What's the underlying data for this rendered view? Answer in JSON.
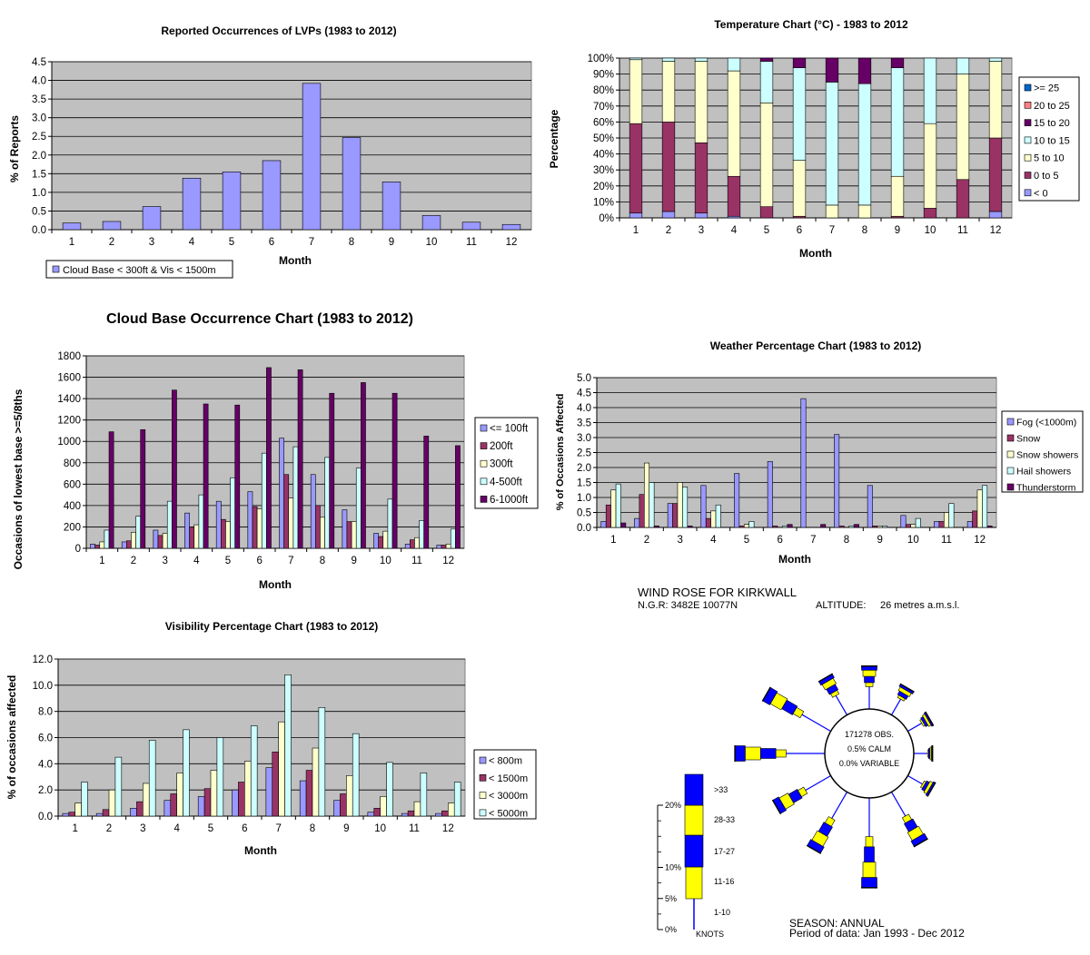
{
  "chart_data": [
    {
      "id": "lvp",
      "type": "bar",
      "title": "Reported Occurrences of LVPs (1983 to 2012)",
      "xlabel": "Month",
      "ylabel": "% of Reports",
      "ylim": [
        0,
        4.5
      ],
      "yticks": [
        "0.0",
        "0.5",
        "1.0",
        "1.5",
        "2.0",
        "2.5",
        "3.0",
        "3.5",
        "4.0",
        "4.5"
      ],
      "categories": [
        "1",
        "2",
        "3",
        "4",
        "5",
        "6",
        "7",
        "8",
        "9",
        "10",
        "11",
        "12"
      ],
      "grid": true,
      "legend_position": "bottom",
      "series": [
        {
          "name": "Cloud Base < 300ft & Vis < 1500m",
          "color": "#9999ff",
          "values": [
            0.18,
            0.22,
            0.62,
            1.38,
            1.55,
            1.85,
            3.92,
            2.47,
            1.28,
            0.38,
            0.2,
            0.14
          ]
        }
      ]
    },
    {
      "id": "temp",
      "type": "bar",
      "stacked": true,
      "title": "Temperature Chart (°C) - 1983 to 2012",
      "xlabel": "Month",
      "ylabel": "Percentage",
      "ylim": [
        0,
        100
      ],
      "yticks": [
        "0%",
        "10%",
        "20%",
        "30%",
        "40%",
        "50%",
        "60%",
        "70%",
        "80%",
        "90%",
        "100%"
      ],
      "categories": [
        "1",
        "2",
        "3",
        "4",
        "5",
        "6",
        "7",
        "8",
        "9",
        "10",
        "11",
        "12"
      ],
      "grid": true,
      "legend_position": "right",
      "series": [
        {
          "name": "< 0",
          "color": "#9999ff",
          "values": [
            3,
            4,
            3,
            1,
            0,
            0,
            0,
            0,
            0,
            0,
            0,
            4
          ]
        },
        {
          "name": "0 to 5",
          "color": "#993366",
          "values": [
            56,
            56,
            44,
            25,
            7,
            1,
            0,
            0,
            1,
            6,
            24,
            46
          ]
        },
        {
          "name": "5 to 10",
          "color": "#ffffcc",
          "values": [
            40,
            38,
            51,
            66,
            65,
            35,
            8,
            8,
            25,
            53,
            66,
            48
          ]
        },
        {
          "name": "10 to 15",
          "color": "#ccffff",
          "values": [
            1,
            2,
            2,
            8,
            26,
            58,
            77,
            76,
            68,
            41,
            10,
            2
          ]
        },
        {
          "name": "15 to 20",
          "color": "#660066",
          "values": [
            0,
            0,
            0,
            0,
            2,
            6,
            15,
            16,
            6,
            0,
            0,
            0
          ]
        },
        {
          "name": "20 to 25",
          "color": "#ff8080",
          "values": [
            0,
            0,
            0,
            0,
            0,
            0,
            0,
            0,
            0,
            0,
            0,
            0
          ]
        },
        {
          "name": ">= 25",
          "color": "#0066cc",
          "values": [
            0,
            0,
            0,
            0,
            0,
            0,
            0,
            0,
            0,
            0,
            0,
            0
          ]
        }
      ]
    },
    {
      "id": "cloud",
      "type": "bar",
      "title": "Cloud Base Occurrence Chart (1983 to 2012)",
      "xlabel": "Month",
      "ylabel": "Occasions of lowest base >=5/8ths",
      "ylim": [
        0,
        1800
      ],
      "yticks": [
        "0",
        "200",
        "400",
        "600",
        "800",
        "1000",
        "1200",
        "1400",
        "1600",
        "1800"
      ],
      "categories": [
        "1",
        "2",
        "3",
        "4",
        "5",
        "6",
        "7",
        "8",
        "9",
        "10",
        "11",
        "12"
      ],
      "grid": true,
      "legend_position": "right",
      "series": [
        {
          "name": "<= 100ft",
          "color": "#9999ff",
          "values": [
            40,
            60,
            170,
            330,
            440,
            530,
            1030,
            690,
            360,
            140,
            40,
            30
          ]
        },
        {
          "name": "200ft",
          "color": "#993366",
          "values": [
            30,
            70,
            120,
            200,
            270,
            390,
            690,
            400,
            250,
            110,
            80,
            30
          ]
        },
        {
          "name": "300ft",
          "color": "#ffffcc",
          "values": [
            60,
            150,
            140,
            220,
            250,
            370,
            470,
            290,
            250,
            160,
            100,
            40
          ]
        },
        {
          "name": "4-500ft",
          "color": "#ccffff",
          "values": [
            170,
            300,
            440,
            500,
            660,
            890,
            950,
            850,
            750,
            460,
            260,
            180
          ]
        },
        {
          "name": "6-1000ft",
          "color": "#660066",
          "values": [
            1090,
            1110,
            1480,
            1350,
            1340,
            1690,
            1670,
            1450,
            1550,
            1450,
            1050,
            960
          ]
        }
      ]
    },
    {
      "id": "weather",
      "type": "bar",
      "title": "Weather Percentage Chart (1983 to 2012)",
      "xlabel": "Month",
      "ylabel": "% of Occasions Affected",
      "ylim": [
        0,
        5.0
      ],
      "yticks": [
        "0.0",
        "0.5",
        "1.0",
        "1.5",
        "2.0",
        "2.5",
        "3.0",
        "3.5",
        "4.0",
        "4.5",
        "5.0"
      ],
      "categories": [
        "1",
        "2",
        "3",
        "4",
        "5",
        "6",
        "7",
        "8",
        "9",
        "10",
        "11",
        "12"
      ],
      "grid": true,
      "legend_position": "right",
      "series": [
        {
          "name": "Fog (<1000m)",
          "color": "#9999ff",
          "values": [
            0.2,
            0.3,
            0.8,
            1.4,
            1.8,
            2.2,
            4.3,
            3.1,
            1.4,
            0.4,
            0.2,
            0.2
          ]
        },
        {
          "name": "Snow",
          "color": "#993366",
          "values": [
            0.75,
            1.1,
            0.8,
            0.3,
            0.05,
            0.05,
            0,
            0.05,
            0.05,
            0.1,
            0.2,
            0.55
          ]
        },
        {
          "name": "Snow showers",
          "color": "#ffffcc",
          "values": [
            1.25,
            2.15,
            1.5,
            0.55,
            0.1,
            0,
            0,
            0,
            0.05,
            0.1,
            0.5,
            1.25
          ]
        },
        {
          "name": "Hail showers",
          "color": "#ccffff",
          "values": [
            1.45,
            1.5,
            1.35,
            0.75,
            0.2,
            0.05,
            0,
            0.05,
            0.05,
            0.3,
            0.8,
            1.4
          ]
        },
        {
          "name": "Thunderstorm",
          "color": "#660066",
          "values": [
            0.15,
            0.05,
            0.05,
            0,
            0,
            0.1,
            0.1,
            0.1,
            0,
            0,
            0,
            0.05
          ]
        }
      ]
    },
    {
      "id": "vis",
      "type": "bar",
      "title": "Visibility Percentage Chart (1983 to 2012)",
      "xlabel": "Month",
      "ylabel": "% of occasions affected",
      "ylim": [
        0,
        12
      ],
      "yticks": [
        "0.0",
        "2.0",
        "4.0",
        "6.0",
        "8.0",
        "10.0",
        "12.0"
      ],
      "categories": [
        "1",
        "2",
        "3",
        "4",
        "5",
        "6",
        "7",
        "8",
        "9",
        "10",
        "11",
        "12"
      ],
      "grid": true,
      "legend_position": "right",
      "series": [
        {
          "name": "< 800m",
          "color": "#9999ff",
          "values": [
            0.2,
            0.2,
            0.6,
            1.2,
            1.5,
            2.0,
            3.7,
            2.7,
            1.2,
            0.3,
            0.2,
            0.2
          ]
        },
        {
          "name": "< 1500m",
          "color": "#993366",
          "values": [
            0.3,
            0.5,
            1.1,
            1.7,
            2.1,
            2.6,
            4.9,
            3.5,
            1.7,
            0.6,
            0.4,
            0.4
          ]
        },
        {
          "name": "< 3000m",
          "color": "#ffffcc",
          "values": [
            1.0,
            2.0,
            2.5,
            3.3,
            3.5,
            4.2,
            7.2,
            5.2,
            3.1,
            1.5,
            1.1,
            1.0
          ]
        },
        {
          "name": "< 5000m",
          "color": "#ccffff",
          "values": [
            2.6,
            4.5,
            5.8,
            6.6,
            6.0,
            6.9,
            10.8,
            8.3,
            6.3,
            4.1,
            3.3,
            2.6
          ]
        }
      ]
    }
  ],
  "wind_rose": {
    "title": "WIND ROSE FOR KIRKWALL",
    "ngr": "N.G.R: 3482E 10077N",
    "altitude_label": "ALTITUDE:",
    "altitude_value": "26 metres a.m.s.l.",
    "center_text": [
      "171278 OBS.",
      "0.5% CALM",
      "0.0% VARIABLE"
    ],
    "colors": {
      "blue": "#0000ff",
      "yellow": "#ffff00"
    },
    "directions": [
      {
        "deg": 0,
        "pct": 5.5
      },
      {
        "deg": 30,
        "pct": 4.0
      },
      {
        "deg": 60,
        "pct": 3.2
      },
      {
        "deg": 90,
        "pct": 2.4
      },
      {
        "deg": 120,
        "pct": 3.5
      },
      {
        "deg": 150,
        "pct": 7.5
      },
      {
        "deg": 180,
        "pct": 11.5
      },
      {
        "deg": 210,
        "pct": 8.5
      },
      {
        "deg": 240,
        "pct": 8.0
      },
      {
        "deg": 270,
        "pct": 11.5
      },
      {
        "deg": 300,
        "pct": 9.5
      },
      {
        "deg": 330,
        "pct": 5.5
      }
    ],
    "scale_ticks": [
      "20%",
      "10%",
      "5%",
      "0%"
    ],
    "speed_bands": [
      ">33",
      "28-33",
      "17-27",
      "11-16",
      "1-10"
    ],
    "units": "KNOTS",
    "season": "SEASON: ANNUAL",
    "period": "Period of data: Jan 1993 - Dec 2012"
  }
}
